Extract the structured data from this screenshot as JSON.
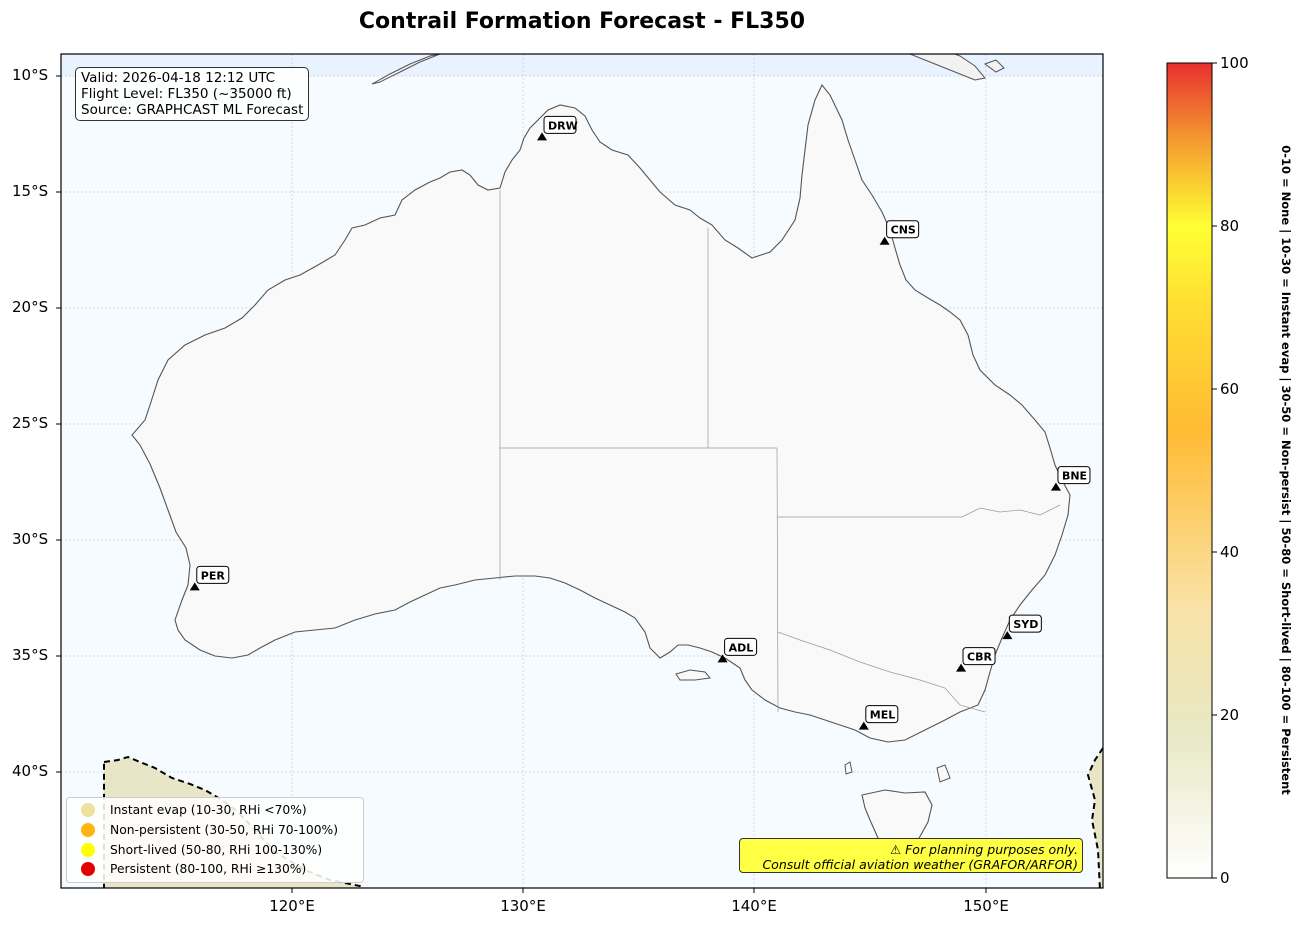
{
  "title": "Contrail Formation Forecast - FL350",
  "info": {
    "valid": "Valid: 2026-04-18 12:12 UTC",
    "flight_level": "Flight Level: FL350 (~35000 ft)",
    "source": "Source: GRAPHCAST ML Forecast"
  },
  "airports": [
    {
      "code": "DRW",
      "lon": 130.8,
      "lat": -12.6
    },
    {
      "code": "CNS",
      "lon": 145.6,
      "lat": -17.1
    },
    {
      "code": "BNE",
      "lon": 153.0,
      "lat": -27.7
    },
    {
      "code": "PER",
      "lon": 115.8,
      "lat": -32.0
    },
    {
      "code": "ADL",
      "lon": 138.6,
      "lat": -35.1
    },
    {
      "code": "SYD",
      "lon": 150.9,
      "lat": -34.1
    },
    {
      "code": "CBR",
      "lon": 148.9,
      "lat": -35.5
    },
    {
      "code": "MEL",
      "lon": 144.7,
      "lat": -38.0
    }
  ],
  "axes": {
    "y_ticks": [
      "10°S",
      "15°S",
      "20°S",
      "25°S",
      "30°S",
      "35°S",
      "40°S"
    ],
    "x_ticks": [
      "120°E",
      "130°E",
      "140°E",
      "150°E"
    ]
  },
  "legend": [
    {
      "label": "Instant evap (10-30, RHi <70%)",
      "color": "#f0e1a0"
    },
    {
      "label": "Non-persistent (30-50, RHi 70-100%)",
      "color": "#ffb510"
    },
    {
      "label": "Short-lived (50-80, RHi 100-130%)",
      "color": "#ffff00"
    },
    {
      "label": "Persistent (80-100, RHi ≥130%)",
      "color": "#e00000"
    }
  ],
  "disclaimer": {
    "line1": "⚠ For planning purposes only.",
    "line2": "Consult official aviation weather (GRAFOR/ARFOR)"
  },
  "colorbar": {
    "ticks": [
      "0",
      "20",
      "40",
      "60",
      "80",
      "100"
    ],
    "label": "0-10 = None  |  10-30 = Instant evap  |  30-50 = Non-persist  |  50-80 = Short-lived  |  80-100 = Persistent"
  }
}
